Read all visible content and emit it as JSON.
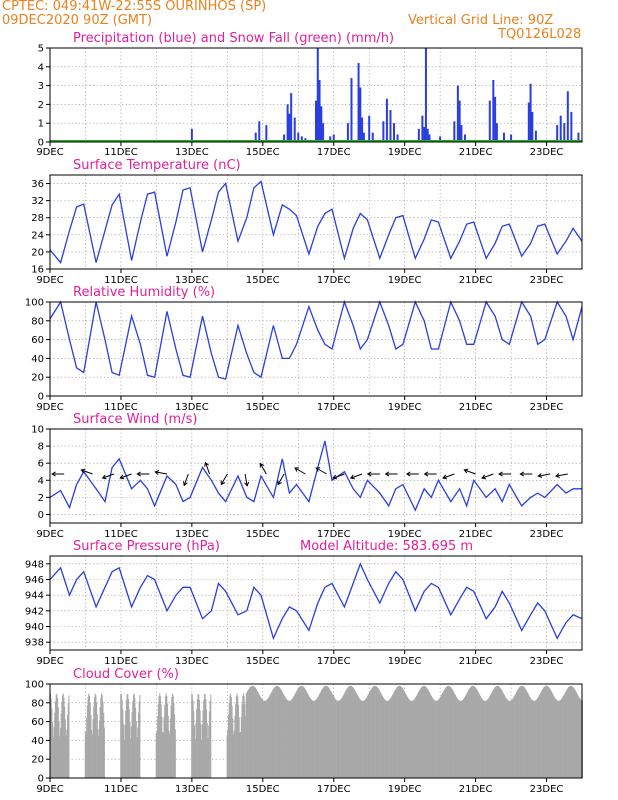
{
  "header": {
    "line1": "CPTEC:  049:41W-22:55S  OURINHOS (SP)",
    "line2": "09DEC2020 90Z (GMT)",
    "grid_note": "Vertical Grid Line: 90Z",
    "code": "TQ0126L028"
  },
  "colors": {
    "orange": "#e8821e",
    "magenta": "#e0209a",
    "series_blue": "#2a3ee0",
    "snow_green": "#22aa22",
    "cloud_gray": "#a8a8a8",
    "arrow": "#000000"
  },
  "x_axis": {
    "labels": [
      "9DEC",
      "11DEC",
      "13DEC",
      "15DEC",
      "17DEC",
      "19DEC",
      "21DEC",
      "23DEC"
    ],
    "label_days": [
      0,
      2,
      4,
      6,
      8,
      10,
      12,
      14
    ],
    "range_days": [
      0,
      15
    ],
    "vertical_grid_every_days": 1
  },
  "chart_data": [
    {
      "type": "bar",
      "title": "Precipitation (blue) and Snow Fall (green) (mm/h)",
      "ylim": [
        0,
        5
      ],
      "yticks": [
        0,
        1,
        2,
        3,
        4,
        5
      ],
      "series": [
        {
          "name": "Precipitation",
          "color": "#2a3ee0",
          "x": [
            4.0,
            5.8,
            5.9,
            6.1,
            6.6,
            6.7,
            6.75,
            6.8,
            6.9,
            7.0,
            7.1,
            7.2,
            7.5,
            7.55,
            7.6,
            7.65,
            7.7,
            7.9,
            8.0,
            8.4,
            8.5,
            8.7,
            8.75,
            8.8,
            8.85,
            9.0,
            9.1,
            9.4,
            9.5,
            9.6,
            9.7,
            9.8,
            10.4,
            10.5,
            10.55,
            10.6,
            10.65,
            10.7,
            11.0,
            11.4,
            11.5,
            11.55,
            11.6,
            11.7,
            12.4,
            12.5,
            12.55,
            12.6,
            12.8,
            13.0,
            13.5,
            13.55,
            13.6,
            13.7,
            14.3,
            14.4,
            14.5,
            14.6,
            14.7,
            14.9
          ],
          "values": [
            0.7,
            0.5,
            1.1,
            0.9,
            0.4,
            2.0,
            1.5,
            2.6,
            1.3,
            0.5,
            0.3,
            0.2,
            2.2,
            5.0,
            3.3,
            1.9,
            1.0,
            0.3,
            0.4,
            1.0,
            3.4,
            4.2,
            2.9,
            1.3,
            0.5,
            1.4,
            0.5,
            1.1,
            2.3,
            1.7,
            1.0,
            0.4,
            0.7,
            1.4,
            0.8,
            5.0,
            0.7,
            0.4,
            0.3,
            1.1,
            3.0,
            2.2,
            0.9,
            0.4,
            2.2,
            3.3,
            2.4,
            1.0,
            0.5,
            0.4,
            2.1,
            3.1,
            1.6,
            0.6,
            0.9,
            1.4,
            1.0,
            2.7,
            1.6,
            0.5
          ]
        },
        {
          "name": "Snow Fall",
          "color": "#22aa22",
          "x": [],
          "values": []
        }
      ]
    },
    {
      "type": "line",
      "title": "Surface Temperature (nC)",
      "ylim": [
        16,
        38
      ],
      "yticks": [
        16,
        20,
        24,
        28,
        32,
        36
      ],
      "x": [
        0.0,
        0.3,
        0.55,
        0.75,
        0.95,
        1.3,
        1.55,
        1.75,
        1.95,
        2.3,
        2.55,
        2.75,
        2.95,
        3.3,
        3.55,
        3.75,
        3.95,
        4.3,
        4.55,
        4.75,
        4.95,
        5.3,
        5.55,
        5.75,
        5.95,
        6.3,
        6.55,
        6.75,
        6.95,
        7.3,
        7.55,
        7.75,
        7.95,
        8.3,
        8.55,
        8.75,
        8.95,
        9.3,
        9.55,
        9.75,
        9.95,
        10.3,
        10.55,
        10.75,
        10.95,
        11.3,
        11.55,
        11.75,
        11.95,
        12.3,
        12.55,
        12.75,
        12.95,
        13.3,
        13.55,
        13.75,
        13.95,
        14.3,
        14.55,
        14.75,
        15.0
      ],
      "series": [
        {
          "name": "Surface Temperature",
          "values": [
            20.5,
            17.5,
            25.0,
            30.5,
            31.2,
            17.5,
            25.0,
            31.0,
            33.5,
            18.0,
            27.0,
            33.5,
            34.0,
            19.0,
            27.0,
            34.5,
            35.0,
            20.0,
            27.5,
            34.0,
            36.0,
            22.5,
            28.0,
            35.0,
            36.5,
            24.0,
            31.0,
            30.0,
            28.5,
            19.5,
            26.0,
            29.0,
            30.0,
            18.5,
            25.5,
            29.0,
            27.5,
            18.5,
            24.0,
            28.0,
            28.5,
            18.5,
            23.0,
            27.5,
            27.0,
            18.5,
            22.5,
            26.5,
            27.0,
            18.5,
            22.0,
            26.0,
            26.5,
            19.0,
            22.0,
            26.0,
            26.5,
            19.5,
            22.5,
            25.5,
            22.5
          ]
        }
      ]
    },
    {
      "type": "line",
      "title": "Relative Humidity (%)",
      "ylim": [
        0,
        100
      ],
      "yticks": [
        0,
        20,
        40,
        60,
        80,
        100
      ],
      "x": [
        0.0,
        0.3,
        0.55,
        0.75,
        0.95,
        1.3,
        1.55,
        1.75,
        1.95,
        2.3,
        2.55,
        2.75,
        2.95,
        3.3,
        3.55,
        3.75,
        3.95,
        4.3,
        4.55,
        4.75,
        4.95,
        5.3,
        5.55,
        5.75,
        5.95,
        6.3,
        6.55,
        6.75,
        6.95,
        7.3,
        7.55,
        7.75,
        7.95,
        8.3,
        8.55,
        8.75,
        8.95,
        9.3,
        9.55,
        9.75,
        9.95,
        10.3,
        10.55,
        10.75,
        10.95,
        11.3,
        11.55,
        11.75,
        11.95,
        12.3,
        12.55,
        12.75,
        12.95,
        13.3,
        13.55,
        13.75,
        13.95,
        14.3,
        14.55,
        14.75,
        15.0
      ],
      "series": [
        {
          "name": "Relative Humidity",
          "values": [
            82.0,
            100.0,
            60.0,
            30.0,
            25.0,
            100.0,
            60.0,
            25.0,
            22.0,
            85.0,
            55.0,
            22.0,
            20.0,
            90.0,
            50.0,
            22.0,
            20.0,
            85.0,
            45.0,
            20.0,
            18.0,
            75.0,
            45.0,
            25.0,
            20.0,
            75.0,
            40.0,
            40.0,
            55.0,
            95.0,
            70.0,
            55.0,
            50.0,
            100.0,
            75.0,
            50.0,
            60.0,
            100.0,
            75.0,
            50.0,
            55.0,
            100.0,
            80.0,
            50.0,
            50.0,
            100.0,
            80.0,
            55.0,
            55.0,
            100.0,
            85.0,
            60.0,
            55.0,
            100.0,
            85.0,
            55.0,
            60.0,
            100.0,
            85.0,
            60.0,
            95.0
          ]
        }
      ]
    },
    {
      "type": "line",
      "title": "Surface Wind (m/s)",
      "ylim": [
        -1,
        10
      ],
      "yticks": [
        0,
        2,
        4,
        6,
        8,
        10
      ],
      "x": [
        0.0,
        0.3,
        0.55,
        0.75,
        0.95,
        1.3,
        1.55,
        1.75,
        1.95,
        2.3,
        2.55,
        2.75,
        2.95,
        3.3,
        3.55,
        3.75,
        3.95,
        4.3,
        4.55,
        4.75,
        4.95,
        5.3,
        5.55,
        5.75,
        5.95,
        6.3,
        6.55,
        6.75,
        6.95,
        7.3,
        7.55,
        7.75,
        7.95,
        8.3,
        8.55,
        8.75,
        8.95,
        9.3,
        9.55,
        9.75,
        9.95,
        10.3,
        10.55,
        10.75,
        10.95,
        11.3,
        11.55,
        11.75,
        11.95,
        12.3,
        12.55,
        12.75,
        12.95,
        13.3,
        13.55,
        13.75,
        13.95,
        14.3,
        14.55,
        14.75,
        15.0
      ],
      "series": [
        {
          "name": "Surface Wind",
          "values": [
            2.0,
            2.8,
            0.8,
            3.5,
            5.0,
            3.0,
            1.5,
            5.5,
            6.5,
            3.0,
            4.0,
            3.0,
            1.0,
            4.5,
            3.5,
            1.5,
            2.0,
            5.5,
            4.0,
            2.5,
            1.5,
            4.5,
            2.0,
            1.5,
            4.5,
            2.0,
            6.5,
            2.5,
            3.5,
            1.5,
            5.5,
            8.6,
            4.0,
            5.0,
            3.0,
            2.0,
            4.0,
            2.5,
            1.0,
            3.0,
            3.5,
            0.5,
            3.0,
            2.0,
            4.0,
            1.5,
            3.0,
            1.0,
            4.0,
            2.0,
            3.0,
            1.5,
            3.5,
            1.0,
            2.0,
            2.5,
            2.0,
            3.5,
            2.5,
            3.0,
            3.0
          ]
        }
      ],
      "arrows_x": [
        0.4,
        1.2,
        1.8,
        2.3,
        2.8,
        3.3,
        3.9,
        4.5,
        5.0,
        5.5,
        6.1,
        6.6,
        7.2,
        7.8,
        8.3,
        8.8,
        9.3,
        9.8,
        10.4,
        10.9,
        11.4,
        12.0,
        12.5,
        13.0,
        13.6,
        14.1,
        14.6
      ],
      "arrows_dir_deg": [
        180,
        160,
        200,
        200,
        180,
        170,
        250,
        110,
        240,
        280,
        120,
        240,
        150,
        150,
        200,
        200,
        180,
        180,
        180,
        180,
        200,
        160,
        200,
        180,
        180,
        190,
        190
      ]
    },
    {
      "type": "line",
      "title": "Surface Pressure (hPa)",
      "ylim": [
        937,
        949
      ],
      "yticks": [
        938,
        940,
        942,
        944,
        946,
        948
      ],
      "x": [
        0.0,
        0.3,
        0.55,
        0.75,
        0.95,
        1.3,
        1.55,
        1.75,
        1.95,
        2.3,
        2.55,
        2.75,
        2.95,
        3.3,
        3.55,
        3.75,
        3.95,
        4.3,
        4.55,
        4.75,
        4.95,
        5.3,
        5.55,
        5.75,
        5.95,
        6.3,
        6.55,
        6.75,
        6.95,
        7.3,
        7.55,
        7.75,
        7.95,
        8.3,
        8.55,
        8.75,
        8.95,
        9.3,
        9.55,
        9.75,
        9.95,
        10.3,
        10.55,
        10.75,
        10.95,
        11.3,
        11.55,
        11.75,
        11.95,
        12.3,
        12.55,
        12.75,
        12.95,
        13.3,
        13.55,
        13.75,
        13.95,
        14.3,
        14.55,
        14.75,
        15.0
      ],
      "series": [
        {
          "name": "Surface Pressure",
          "values": [
            946.0,
            947.5,
            944.0,
            946.0,
            947.0,
            942.5,
            945.0,
            947.0,
            947.5,
            942.5,
            945.0,
            946.5,
            946.0,
            942.0,
            944.0,
            945.0,
            945.0,
            941.0,
            942.0,
            945.5,
            944.5,
            941.5,
            942.0,
            945.0,
            944.0,
            938.5,
            941.0,
            942.5,
            942.0,
            939.5,
            943.0,
            945.0,
            945.5,
            942.5,
            945.5,
            948.0,
            946.0,
            943.0,
            945.5,
            947.0,
            946.0,
            942.0,
            944.5,
            945.5,
            945.0,
            941.5,
            943.5,
            945.0,
            944.5,
            941.0,
            942.5,
            944.5,
            943.0,
            939.5,
            941.5,
            943.0,
            942.0,
            938.5,
            940.5,
            941.5,
            941.0
          ]
        }
      ]
    },
    {
      "type": "bar",
      "title": "Cloud Cover (%)",
      "ylim": [
        0,
        100
      ],
      "yticks": [
        0,
        20,
        40,
        60,
        80,
        100
      ],
      "series": [
        {
          "name": "Cloud Cover",
          "color": "#a8a8a8"
        }
      ]
    }
  ],
  "annotations": {
    "model_altitude": "Model Altitude: 583.695  m"
  }
}
